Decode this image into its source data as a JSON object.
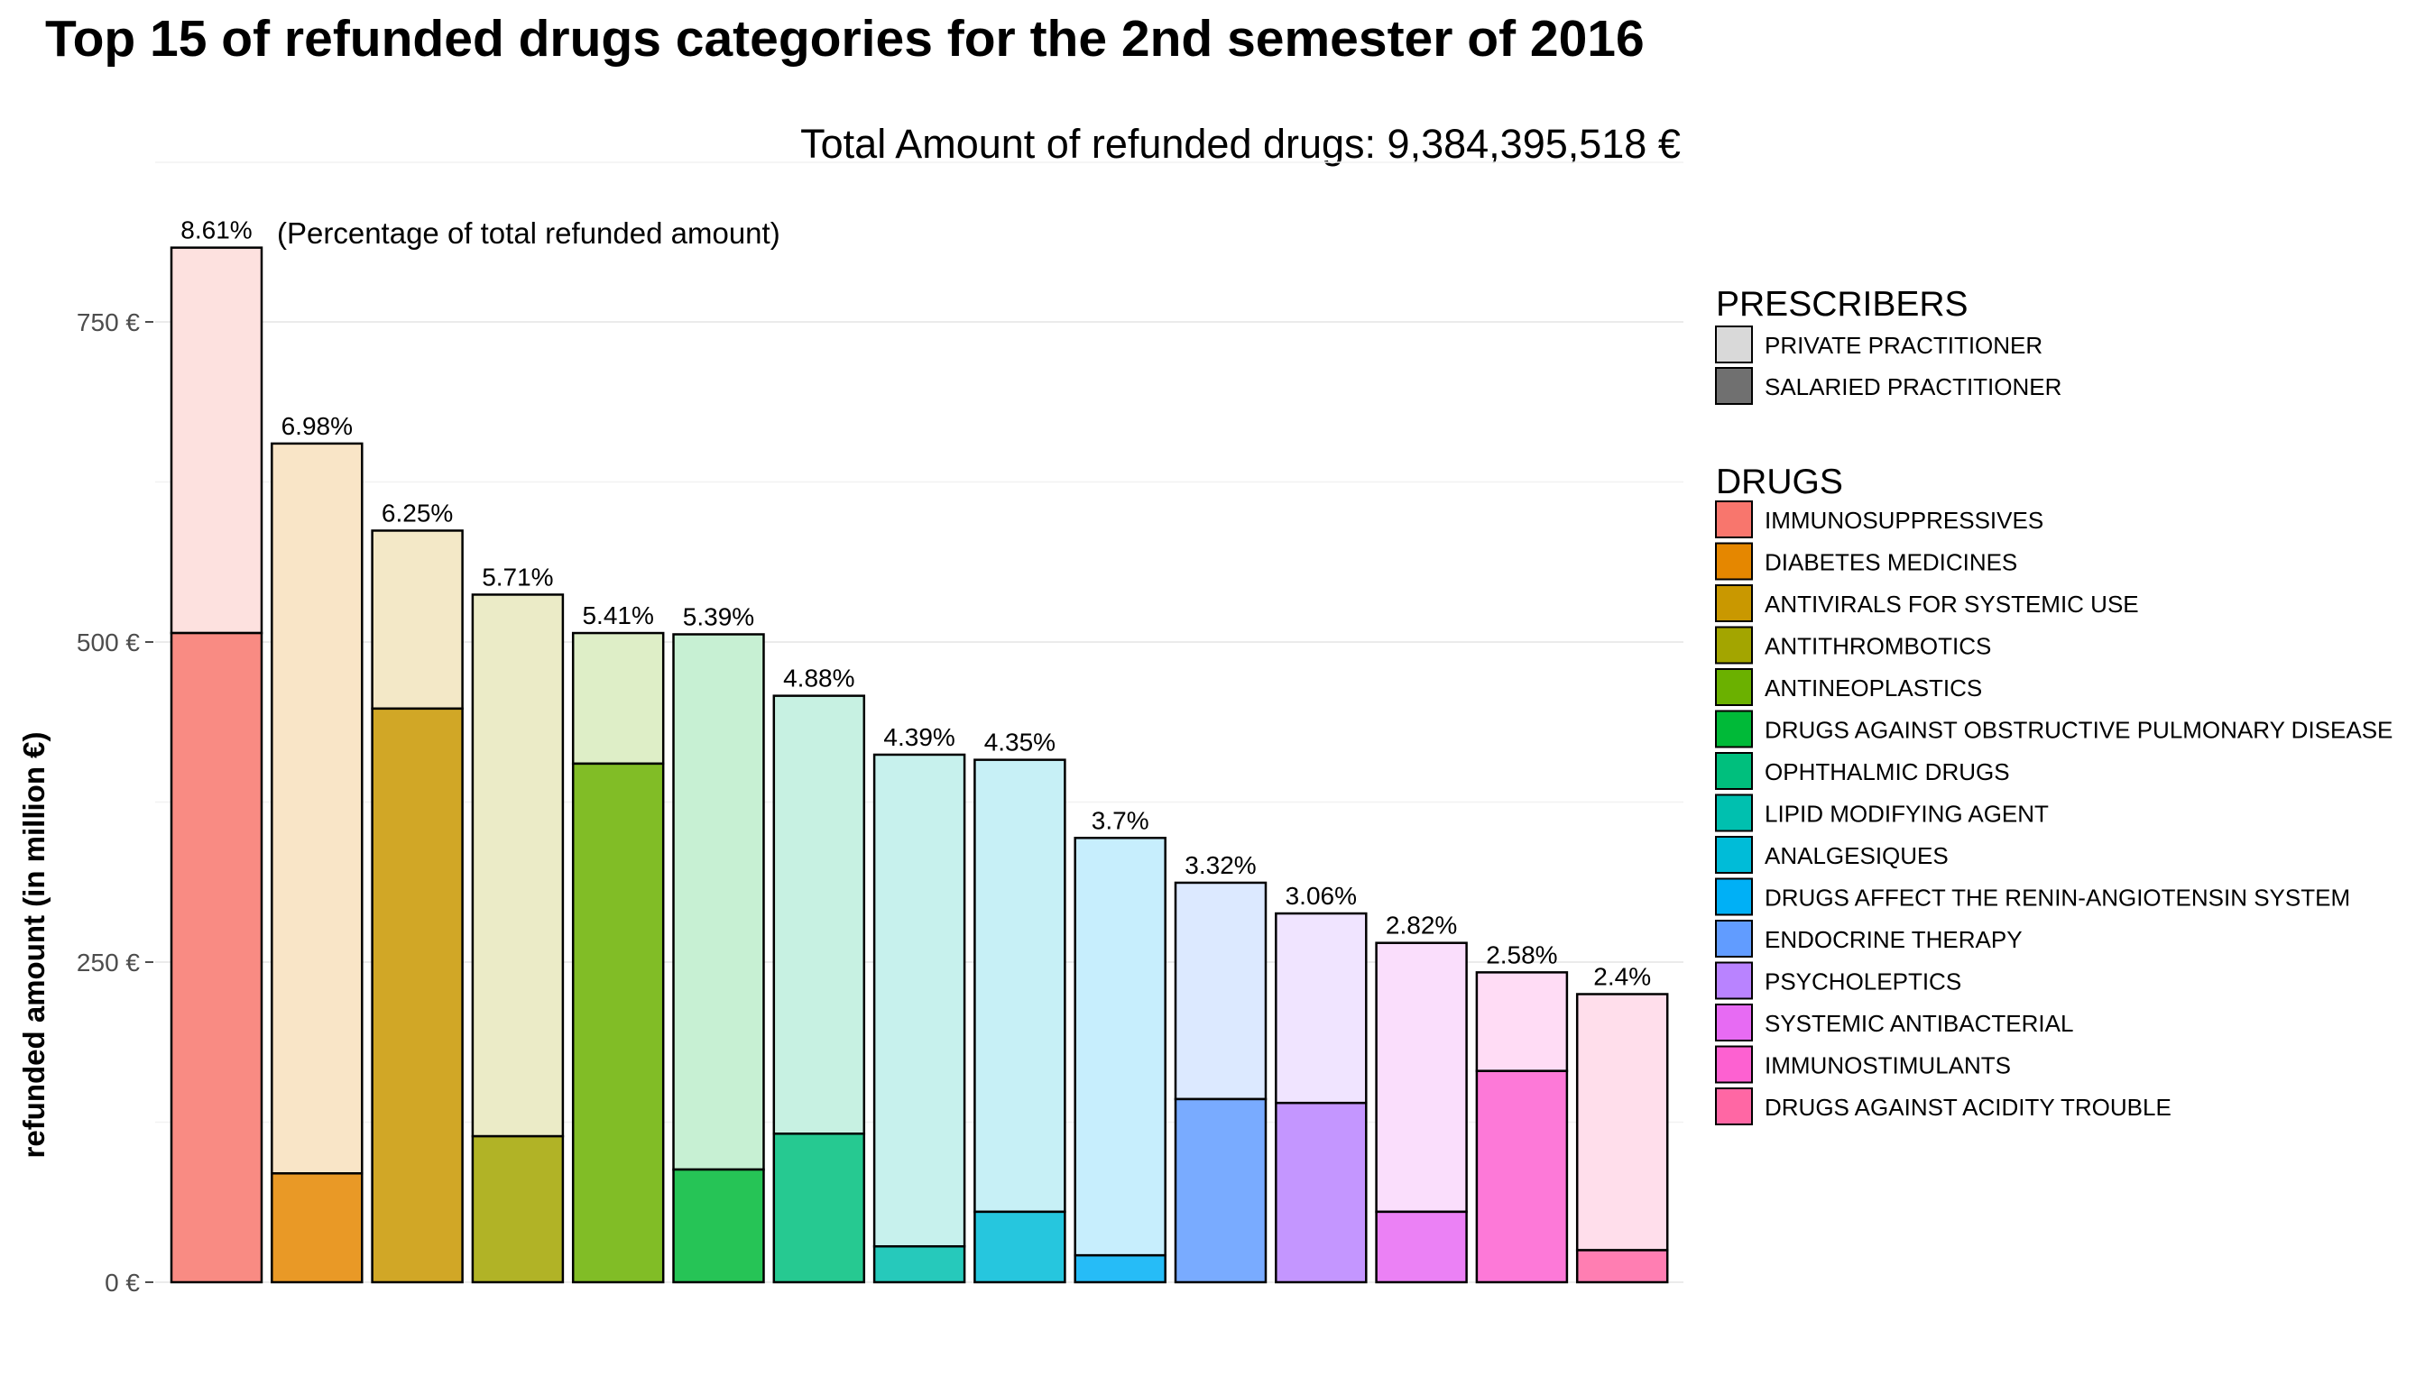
{
  "chart_data": {
    "type": "bar",
    "title": "Top 15 of refunded drugs categories for the 2nd semester of 2016",
    "subtitle": "Total Amount of refunded drugs: 9,384,395,518 €",
    "annotation": "(Percentage of total refunded amount)",
    "ylabel": "refunded amount (in million €)",
    "xlabel": "",
    "ylim": [
      0,
      850
    ],
    "y_ticks": [
      {
        "value": 0,
        "label": "0 €"
      },
      {
        "value": 250,
        "label": "250 €"
      },
      {
        "value": 500,
        "label": "500 €"
      },
      {
        "value": 750,
        "label": "750 €"
      }
    ],
    "y_minor_ticks": [
      125,
      375,
      625
    ],
    "grid": true,
    "legend_position": "right",
    "categories": [
      "IMMUNOSUPPRESSIVES",
      "DIABETES MEDICINES",
      "ANTIVIRALS FOR SYSTEMIC USE",
      "ANTITHROMBOTICS",
      "ANTINEOPLASTICS",
      "DRUGS AGAINST OBSTRUCTIVE PULMONARY DISEASE",
      "OPHTHALMIC DRUGS",
      "LIPID MODIFYING AGENT",
      "ANALGESIQUES",
      "DRUGS AFFECT THE RENIN-ANGIOTENSIN SYSTEM",
      "ENDOCRINE THERAPY",
      "PSYCHOLEPTICS",
      "SYSTEMIC ANTIBACTERIAL",
      "IMMUNOSTIMULANTS",
      "DRUGS AGAINST ACIDITY TROUBLE"
    ],
    "colors": [
      "#F8766D",
      "#E58700",
      "#C99800",
      "#A3A500",
      "#6BB100",
      "#00BA38",
      "#00BF7D",
      "#00C0AF",
      "#00BCD8",
      "#00B0F6",
      "#619CFF",
      "#B983FF",
      "#E76BF3",
      "#FD61D1",
      "#FF67A4"
    ],
    "series": [
      {
        "name": "SALARIED PRACTITIONER",
        "values": [
          507,
          85,
          448,
          114,
          405,
          88,
          116,
          28,
          55,
          21,
          143,
          140,
          55,
          165,
          25
        ]
      },
      {
        "name": "PRIVATE PRACTITIONER",
        "values": [
          301,
          570,
          139,
          423,
          102,
          418,
          342,
          384,
          353,
          326,
          169,
          148,
          210,
          77,
          200
        ]
      }
    ],
    "totals": [
      808,
      655,
      587,
      537,
      507,
      506,
      458,
      412,
      408,
      347,
      312,
      288,
      265,
      242,
      225
    ],
    "percent_labels": [
      "8.61%",
      "6.98%",
      "6.25%",
      "5.71%",
      "5.41%",
      "5.39%",
      "4.88%",
      "4.39%",
      "4.35%",
      "3.7%",
      "3.32%",
      "3.06%",
      "2.82%",
      "2.58%",
      "2.4%"
    ]
  },
  "legend": {
    "prescribers_title": "PRESCRIBERS",
    "prescribers": [
      {
        "label": "PRIVATE PRACTITIONER",
        "color": "#d9d9d9"
      },
      {
        "label": "SALARIED PRACTITIONER",
        "color": "#707070"
      }
    ],
    "drugs_title": "DRUGS"
  }
}
